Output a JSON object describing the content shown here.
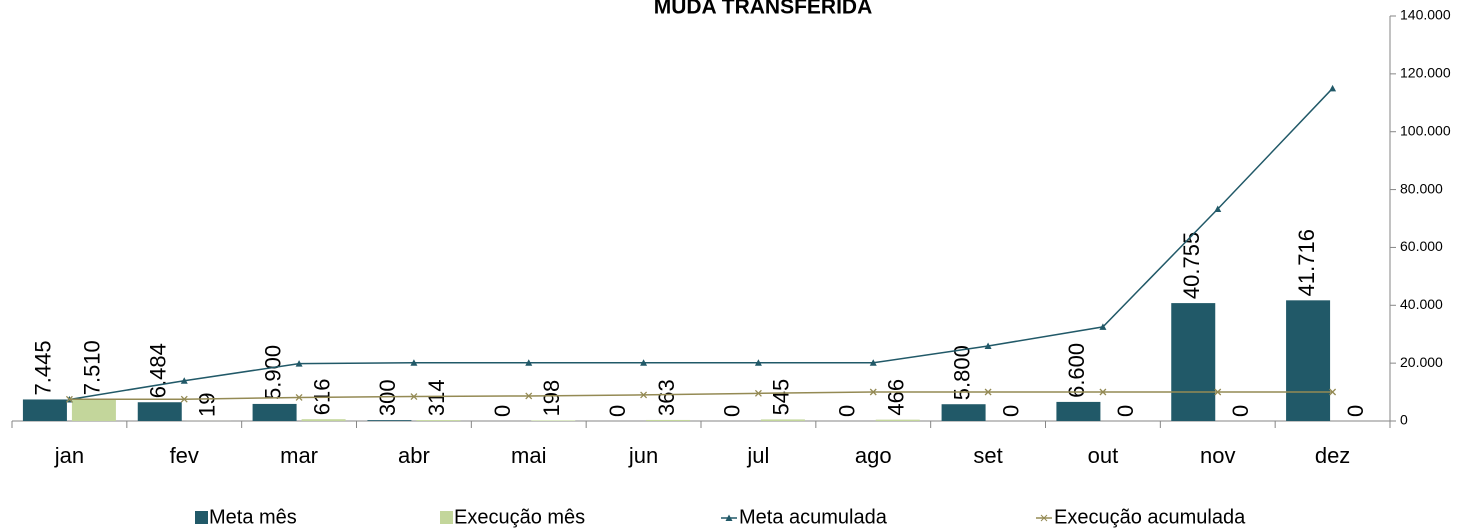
{
  "chart_data": {
    "type": "bar",
    "title": "MUDA TRANSFERIDA",
    "categories": [
      "jan",
      "fev",
      "mar",
      "abr",
      "mai",
      "jun",
      "jul",
      "ago",
      "set",
      "out",
      "nov",
      "dez"
    ],
    "series": [
      {
        "name": "Meta mês",
        "type": "bar",
        "color": "#215968",
        "values": [
          7445,
          6484,
          5900,
          300,
          0,
          0,
          0,
          0,
          5800,
          6600,
          40755,
          41716
        ],
        "value_labels": [
          "7.445",
          "6.484",
          "5.900",
          "300",
          "0",
          "0",
          "0",
          "0",
          "5.800",
          "6.600",
          "40.755",
          "41.716"
        ]
      },
      {
        "name": "Execução mês",
        "type": "bar",
        "color": "#c3d69b",
        "values": [
          7510,
          19,
          616,
          314,
          198,
          363,
          545,
          466,
          0,
          0,
          0,
          0
        ],
        "value_labels": [
          "7.510",
          "19",
          "616",
          "314",
          "198",
          "363",
          "545",
          "466",
          "0",
          "0",
          "0",
          "0"
        ]
      },
      {
        "name": "Meta acumulada",
        "type": "line",
        "marker": "triangle",
        "color": "#215968",
        "values": [
          7445,
          13929,
          19829,
          20129,
          20129,
          20129,
          20129,
          20129,
          25929,
          32529,
          73284,
          115000
        ]
      },
      {
        "name": "Execução acumulada",
        "type": "line",
        "marker": "x",
        "color": "#948a54",
        "values": [
          7510,
          7529,
          8145,
          8459,
          8657,
          9020,
          9565,
          10031,
          10031,
          10031,
          10031,
          10031
        ]
      }
    ],
    "ylim": [
      0,
      140000
    ],
    "yticks": [
      0,
      {
        "value": 20000,
        "label": "20.000"
      },
      {
        "value": 40000,
        "label": "40.000"
      },
      {
        "value": 60000,
        "label": "60.000"
      },
      {
        "value": 80000,
        "label": "80.000"
      },
      {
        "value": 100000,
        "label": "100.000"
      },
      {
        "value": 120000,
        "label": "120.000"
      },
      {
        "value": 140000,
        "label": "140.000"
      }
    ],
    "y_axis_side": "right",
    "grid": false,
    "legend": "bottom"
  }
}
